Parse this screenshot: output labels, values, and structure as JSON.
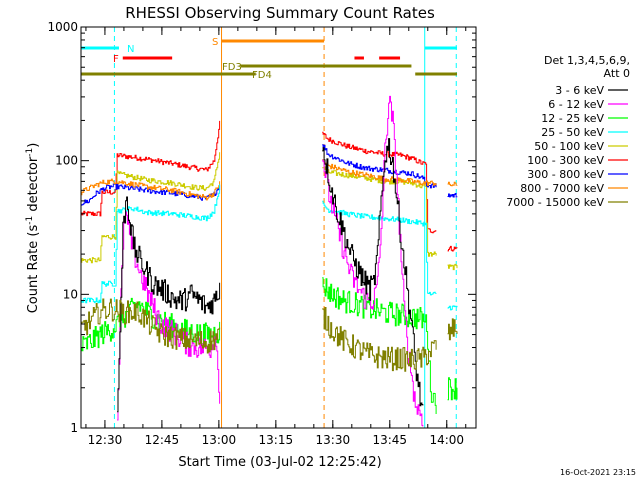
{
  "chart_data": {
    "type": "line",
    "title": "RHESSI Observing Summary Count Rates",
    "xlabel": "Start Time (03-Jul-02 12:25:42)",
    "ylabel_main": "Count Rate (s",
    "ylabel_sup": "-1",
    "ylabel_tail": " detector",
    "ylabel_sup2": "-1",
    "ylabel_end": ")",
    "yscale": "log",
    "ylim": [
      1,
      1000
    ],
    "xlim_minutes": [
      -2,
      102
    ],
    "y_ticks": [
      {
        "v": 1,
        "label": "1"
      },
      {
        "v": 10,
        "label": "10"
      },
      {
        "v": 100,
        "label": "100"
      },
      {
        "v": 1000,
        "label": "1000"
      }
    ],
    "x_ticks": [
      {
        "t": 4.3,
        "label": "12:30"
      },
      {
        "t": 19.3,
        "label": "12:45"
      },
      {
        "t": 34.3,
        "label": "13:00"
      },
      {
        "t": 49.3,
        "label": "13:15"
      },
      {
        "t": 64.3,
        "label": "13:30"
      },
      {
        "t": 79.3,
        "label": "13:45"
      },
      {
        "t": 94.3,
        "label": "14:00"
      }
    ],
    "legend": {
      "header": [
        "Det 1,3,4,5,6,9,",
        "Att 0"
      ],
      "entries": [
        {
          "label": "3 - 6 keV",
          "color": "#000000"
        },
        {
          "label": "6 - 12 keV",
          "color": "#ff00ff"
        },
        {
          "label": "12 - 25 keV",
          "color": "#00ff00"
        },
        {
          "label": "25 - 50 keV",
          "color": "#00ffff"
        },
        {
          "label": "50 - 100 keV",
          "color": "#cccc00"
        },
        {
          "label": "100 - 300 keV",
          "color": "#ff0000"
        },
        {
          "label": "300 - 800 keV",
          "color": "#0000ff"
        },
        {
          "label": "800 - 7000 keV",
          "color": "#ff8800"
        },
        {
          "label": "7000 - 15000 keV",
          "color": "#808000"
        }
      ]
    },
    "flag_bars": [
      {
        "label": "N",
        "color": "#00ffff",
        "segments": [
          [
            -2,
            8
          ],
          [
            88.5,
            97
          ]
        ]
      },
      {
        "label": "F",
        "color": "#ff0000",
        "segments": [
          [
            9,
            22
          ],
          [
            70,
            72.5
          ],
          [
            76.5,
            82
          ]
        ]
      },
      {
        "label": "S",
        "color": "#ff8800",
        "segments": [
          [
            35,
            62
          ]
        ]
      },
      {
        "label": "FD3",
        "color": "#808000",
        "segments": [
          [
            40,
            85
          ]
        ]
      },
      {
        "label": "FD4",
        "color": "#808000",
        "segments": [
          [
            -2,
            44
          ],
          [
            86,
            97
          ]
        ]
      }
    ],
    "vertical_markers": [
      {
        "t": 6.8,
        "color": "#00ffff",
        "style": "dashed"
      },
      {
        "t": 35,
        "color": "#ff8800",
        "style": "solid"
      },
      {
        "t": 62,
        "color": "#ff8800",
        "style": "dashed"
      },
      {
        "t": 88.5,
        "color": "#00ffff",
        "style": "solid"
      },
      {
        "t": 96.8,
        "color": "#00ffff",
        "style": "dashed"
      }
    ],
    "data_gaps": [
      [
        34.5,
        61.5
      ],
      [
        91.5,
        94.5
      ]
    ],
    "series": [
      {
        "name": "100 - 300 keV",
        "color": "#ff0000",
        "points": [
          [
            -2,
            40
          ],
          [
            3,
            40
          ],
          [
            3.5,
            58
          ],
          [
            7,
            58
          ],
          [
            7.5,
            110
          ],
          [
            15,
            103
          ],
          [
            22,
            95
          ],
          [
            28,
            88
          ],
          [
            31,
            85
          ],
          [
            33,
            100
          ],
          [
            34.5,
            190
          ],
          [
            61.5,
            160
          ],
          [
            63,
            145
          ],
          [
            68,
            128
          ],
          [
            73,
            118
          ],
          [
            78,
            112
          ],
          [
            82,
            110
          ],
          [
            85,
            104
          ],
          [
            88,
            95
          ],
          [
            88.5,
            95
          ],
          [
            88.8,
            92
          ],
          [
            89.2,
            30
          ],
          [
            91.5,
            30
          ],
          [
            94.5,
            22
          ],
          [
            97,
            22
          ]
        ]
      },
      {
        "name": "50 - 100 keV",
        "color": "#cccc00",
        "points": [
          [
            -2,
            18
          ],
          [
            3,
            18
          ],
          [
            3.5,
            27
          ],
          [
            7,
            27
          ],
          [
            7.5,
            80
          ],
          [
            15,
            72
          ],
          [
            22,
            68
          ],
          [
            28,
            63
          ],
          [
            31,
            62
          ],
          [
            33,
            70
          ],
          [
            34.5,
            115
          ],
          [
            61.5,
            90
          ],
          [
            63,
            82
          ],
          [
            68,
            78
          ],
          [
            73,
            74
          ],
          [
            78,
            70
          ],
          [
            82,
            70
          ],
          [
            85,
            68
          ],
          [
            88,
            64
          ],
          [
            88.5,
            64
          ],
          [
            88.8,
            62
          ],
          [
            89.2,
            20
          ],
          [
            91.5,
            20
          ],
          [
            94.5,
            16
          ],
          [
            97,
            16
          ]
        ]
      },
      {
        "name": "300 - 800 keV",
        "color": "#0000ff",
        "points": [
          [
            -2,
            48
          ],
          [
            0,
            50
          ],
          [
            2,
            57
          ],
          [
            4,
            62
          ],
          [
            6,
            64
          ],
          [
            7.5,
            64
          ],
          [
            15,
            60
          ],
          [
            22,
            57
          ],
          [
            28,
            54
          ],
          [
            31,
            52
          ],
          [
            33,
            56
          ],
          [
            34.5,
            65
          ],
          [
            61.5,
            135
          ],
          [
            63,
            112
          ],
          [
            68,
            96
          ],
          [
            73,
            88
          ],
          [
            78,
            85
          ],
          [
            82,
            82
          ],
          [
            85,
            80
          ],
          [
            88,
            74
          ],
          [
            88.5,
            70
          ],
          [
            89,
            66
          ],
          [
            91.5,
            64
          ],
          [
            94.5,
            55
          ],
          [
            97,
            55
          ]
        ]
      },
      {
        "name": "800 - 7000 keV",
        "color": "#ff8800",
        "points": [
          [
            -2,
            58
          ],
          [
            0,
            62
          ],
          [
            2,
            66
          ],
          [
            4,
            69
          ],
          [
            6,
            70
          ],
          [
            7.5,
            70
          ],
          [
            15,
            64
          ],
          [
            22,
            60
          ],
          [
            28,
            55
          ],
          [
            31,
            53
          ],
          [
            33,
            57
          ],
          [
            34.5,
            68
          ],
          [
            61.5,
            100
          ],
          [
            63,
            92
          ],
          [
            68,
            83
          ],
          [
            73,
            78
          ],
          [
            78,
            73
          ],
          [
            82,
            72
          ],
          [
            85,
            70
          ],
          [
            88,
            68
          ],
          [
            88.5,
            68
          ],
          [
            89,
            68
          ],
          [
            91.5,
            68
          ],
          [
            94.5,
            66
          ],
          [
            97,
            66
          ]
        ]
      },
      {
        "name": "25 - 50 keV",
        "color": "#00ffff",
        "points": [
          [
            -2,
            9
          ],
          [
            3,
            9
          ],
          [
            3.5,
            12
          ],
          [
            7,
            12
          ],
          [
            7.5,
            42
          ],
          [
            12,
            44
          ],
          [
            15,
            41
          ],
          [
            22,
            40
          ],
          [
            28,
            38
          ],
          [
            31,
            37
          ],
          [
            33,
            42
          ],
          [
            34.5,
            64
          ],
          [
            61.5,
            48
          ],
          [
            63,
            43
          ],
          [
            68,
            40
          ],
          [
            73,
            38
          ],
          [
            78,
            37
          ],
          [
            82,
            36
          ],
          [
            85,
            35
          ],
          [
            88,
            34
          ],
          [
            88.5,
            34
          ],
          [
            88.8,
            33
          ],
          [
            89.2,
            10
          ],
          [
            91.5,
            10
          ],
          [
            94.5,
            8
          ],
          [
            97,
            8
          ]
        ]
      },
      {
        "name": "12 - 25 keV",
        "color": "#00ff00",
        "points": [
          [
            -2,
            4
          ],
          [
            1,
            4.5
          ],
          [
            3,
            5
          ],
          [
            6,
            5.5
          ],
          [
            7.5,
            6
          ],
          [
            10,
            7
          ],
          [
            13,
            8.5
          ],
          [
            15,
            7.5
          ],
          [
            18,
            6.5
          ],
          [
            21,
            6
          ],
          [
            24,
            5.5
          ],
          [
            27,
            5.2
          ],
          [
            30,
            5
          ],
          [
            32,
            5
          ],
          [
            34,
            5.2
          ],
          [
            34.5,
            5.4
          ],
          [
            61.5,
            12
          ],
          [
            64,
            10
          ],
          [
            67,
            9
          ],
          [
            70,
            8.5
          ],
          [
            73,
            8
          ],
          [
            76,
            7.5
          ],
          [
            79,
            7.2
          ],
          [
            82,
            7
          ],
          [
            85,
            6.8
          ],
          [
            88,
            6.5
          ],
          [
            89,
            6
          ],
          [
            90,
            2
          ],
          [
            91.5,
            1.5
          ],
          [
            94.5,
            2
          ],
          [
            97,
            2
          ]
        ]
      },
      {
        "name": "6 - 12 keV",
        "color": "#ff00ff",
        "points": [
          [
            7.5,
            1.2
          ],
          [
            8.5,
            10
          ],
          [
            9.5,
            42
          ],
          [
            10.5,
            30
          ],
          [
            11.5,
            22
          ],
          [
            13,
            16
          ],
          [
            15,
            11
          ],
          [
            17,
            8
          ],
          [
            19,
            6
          ],
          [
            21,
            5.5
          ],
          [
            23,
            5
          ],
          [
            26,
            4.2
          ],
          [
            29,
            4
          ],
          [
            32,
            4
          ],
          [
            33.5,
            5
          ],
          [
            34.3,
            1.8
          ],
          [
            61.5,
            110
          ],
          [
            63,
            60
          ],
          [
            65,
            35
          ],
          [
            67,
            22
          ],
          [
            69,
            14
          ],
          [
            71,
            11
          ],
          [
            73,
            9
          ],
          [
            75,
            9
          ],
          [
            76,
            12
          ],
          [
            77,
            30
          ],
          [
            78,
            120
          ],
          [
            79,
            280
          ],
          [
            80,
            200
          ],
          [
            81,
            80
          ],
          [
            82,
            25
          ],
          [
            83,
            8
          ],
          [
            84,
            4
          ],
          [
            85,
            2.5
          ],
          [
            86,
            1.5
          ],
          [
            88,
            1.2
          ]
        ]
      },
      {
        "name": "3 - 6 keV",
        "color": "#000000",
        "points": [
          [
            7.5,
            1.2
          ],
          [
            8.3,
            6
          ],
          [
            9,
            30
          ],
          [
            10,
            55
          ],
          [
            11,
            32
          ],
          [
            12,
            22
          ],
          [
            13.5,
            18
          ],
          [
            15,
            15
          ],
          [
            17,
            12
          ],
          [
            19,
            11
          ],
          [
            21,
            10
          ],
          [
            23,
            9
          ],
          [
            25,
            9
          ],
          [
            27,
            10
          ],
          [
            29,
            9
          ],
          [
            31,
            8
          ],
          [
            33,
            9
          ],
          [
            34,
            10
          ],
          [
            34.5,
            12
          ],
          [
            61.5,
            135
          ],
          [
            63,
            80
          ],
          [
            65,
            45
          ],
          [
            67,
            30
          ],
          [
            69,
            20
          ],
          [
            71,
            15
          ],
          [
            73,
            12
          ],
          [
            74,
            11
          ],
          [
            75,
            12
          ],
          [
            76,
            20
          ],
          [
            77,
            50
          ],
          [
            78,
            110
          ],
          [
            79,
            130
          ],
          [
            80,
            95
          ],
          [
            81,
            55
          ],
          [
            82,
            30
          ],
          [
            83,
            18
          ],
          [
            84,
            10
          ],
          [
            85,
            6
          ],
          [
            86,
            3
          ],
          [
            88,
            1.2
          ]
        ]
      },
      {
        "name": "7000 - 15000 keV",
        "color": "#808000",
        "points": [
          [
            -2,
            5.5
          ],
          [
            1,
            6.5
          ],
          [
            3,
            7.5
          ],
          [
            6,
            7.8
          ],
          [
            7.5,
            7.5
          ],
          [
            10,
            7.3
          ],
          [
            13,
            7.4
          ],
          [
            16,
            6
          ],
          [
            19,
            5
          ],
          [
            22,
            4.8
          ],
          [
            25,
            4.6
          ],
          [
            28,
            4.5
          ],
          [
            31,
            4.4
          ],
          [
            33,
            4.6
          ],
          [
            34.5,
            5
          ],
          [
            61.5,
            7
          ],
          [
            64,
            5.5
          ],
          [
            67,
            4.5
          ],
          [
            70,
            4
          ],
          [
            73,
            3.6
          ],
          [
            76,
            3.4
          ],
          [
            79,
            3.3
          ],
          [
            82,
            3.3
          ],
          [
            85,
            3.2
          ],
          [
            88,
            3.3
          ],
          [
            90,
            3.8
          ],
          [
            92,
            4.2
          ],
          [
            94,
            4.8
          ],
          [
            96,
            5.5
          ],
          [
            97,
            5.8
          ]
        ]
      }
    ]
  },
  "footer_date": "16-Oct-2021 23:15"
}
